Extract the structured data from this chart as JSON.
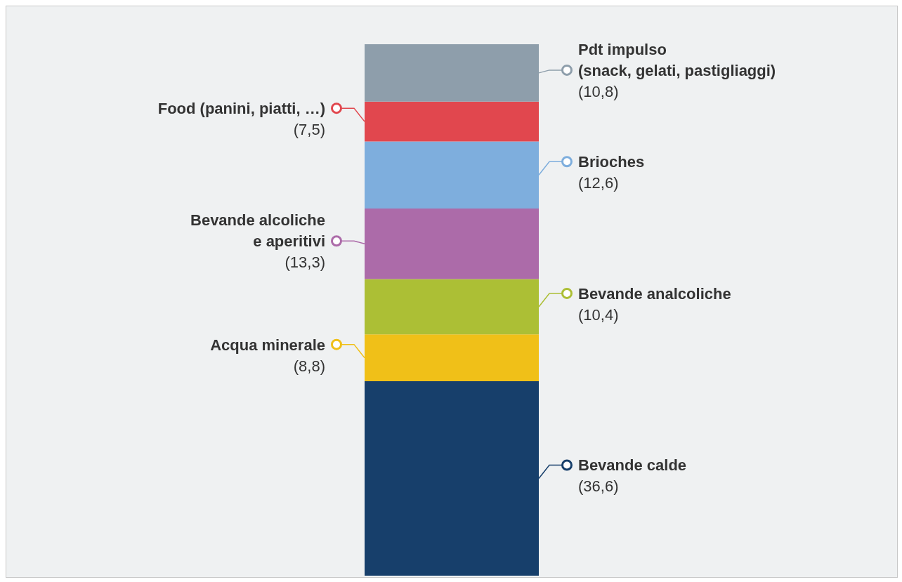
{
  "chart_data": {
    "type": "bar",
    "stacked": true,
    "categories": [
      null
    ],
    "ylim": [
      0,
      100
    ],
    "tick_labels": false,
    "series": [
      {
        "name": "Bevande calde",
        "color": "#173f6b",
        "values": [
          36.6
        ],
        "value_labels": [
          "(36,6)"
        ]
      },
      {
        "name": "Acqua minerale",
        "color": "#f0c018",
        "values": [
          8.8
        ],
        "value_labels": [
          "(8,8)"
        ]
      },
      {
        "name": "Bevande analcoliche",
        "color": "#acbf35",
        "values": [
          10.4
        ],
        "value_labels": [
          "(10,4)"
        ]
      },
      {
        "name": "Bevande alcoliche\ne aperitivi",
        "color": "#ac6ba9",
        "values": [
          13.3
        ],
        "value_labels": [
          "(13,3)"
        ]
      },
      {
        "name": "Brioches",
        "color": "#7eaedd",
        "values": [
          12.6
        ],
        "value_labels": [
          "(12,6)"
        ]
      },
      {
        "name": "Food (panini, piatti, …)",
        "color": "#e1474e",
        "values": [
          7.5
        ],
        "value_labels": [
          "(7,5)"
        ]
      },
      {
        "name": "Pdt impulso\n(snack, gelati, pastigliaggi)",
        "color": "#8e9eab",
        "values": [
          10.8
        ],
        "value_labels": [
          "(10,8)"
        ]
      }
    ]
  }
}
